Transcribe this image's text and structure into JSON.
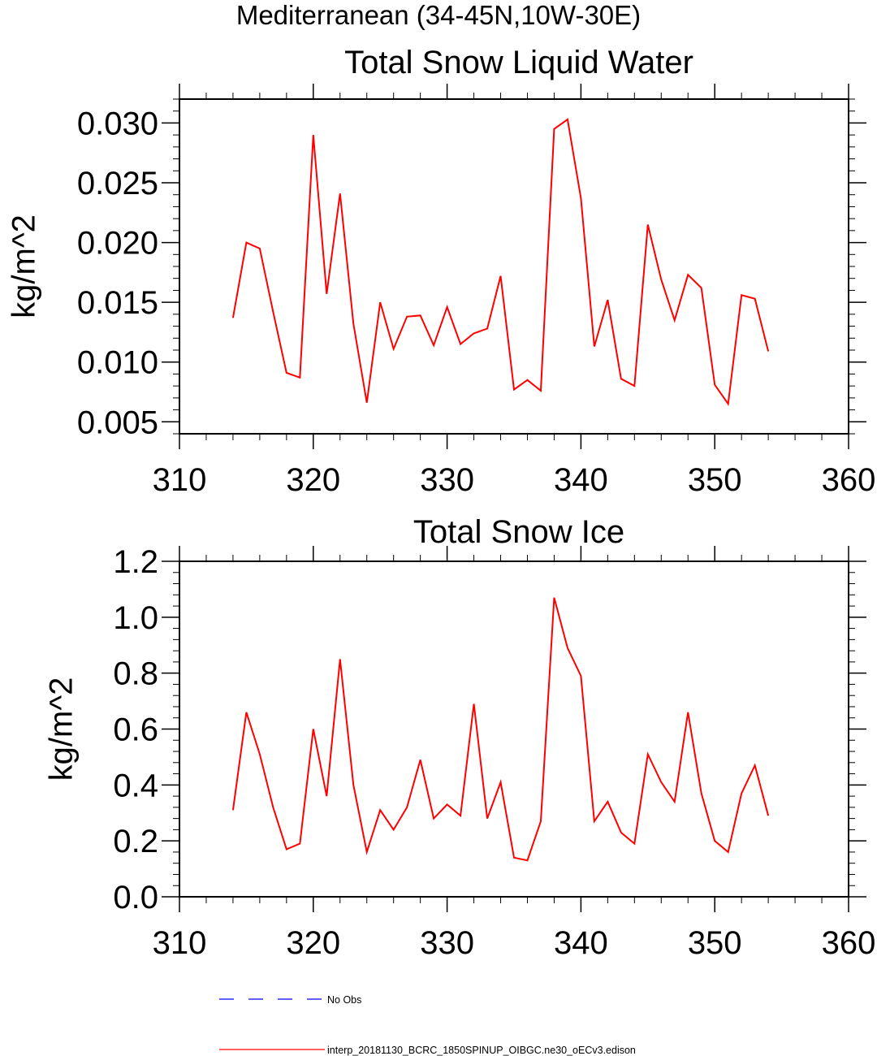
{
  "figure_title": "Mediterranean (34-45N,10W-30E)",
  "colors": {
    "series": "#ff0000",
    "obs": "#0000ff",
    "axis": "#000000"
  },
  "chart_data": [
    {
      "type": "line",
      "title": "Total Snow Liquid Water",
      "xlabel": "",
      "ylabel": "kg/m^2",
      "xlim": [
        310,
        360
      ],
      "ylim": [
        0.004,
        0.032
      ],
      "xticks": [
        310,
        320,
        330,
        340,
        350,
        360
      ],
      "xtick_labels": [
        "310",
        "320",
        "330",
        "340",
        "350",
        "360"
      ],
      "yticks": [
        0.005,
        0.01,
        0.015,
        0.02,
        0.025,
        0.03
      ],
      "ytick_labels": [
        "0.005",
        "0.010",
        "0.015",
        "0.020",
        "0.025",
        "0.030"
      ],
      "grid": false,
      "series": [
        {
          "name": "interp_20181130_BCRC_1850SPINUP_OIBGC.ne30_oECv3.edison",
          "color": "#ff0000",
          "x": [
            314,
            315,
            316,
            317,
            318,
            319,
            320,
            321,
            322,
            323,
            324,
            325,
            326,
            327,
            328,
            329,
            330,
            331,
            332,
            333,
            334,
            335,
            336,
            337,
            338,
            339,
            340,
            341,
            342,
            343,
            344,
            345,
            346,
            347,
            348,
            349,
            350,
            351,
            352,
            353,
            354
          ],
          "values": [
            0.0137,
            0.02,
            0.0195,
            0.0142,
            0.0091,
            0.0087,
            0.029,
            0.0157,
            0.0241,
            0.0132,
            0.0066,
            0.015,
            0.0111,
            0.0138,
            0.0139,
            0.0114,
            0.0146,
            0.0115,
            0.0124,
            0.0128,
            0.0172,
            0.0077,
            0.0085,
            0.0076,
            0.0295,
            0.0303,
            0.0237,
            0.0113,
            0.0152,
            0.0086,
            0.008,
            0.0215,
            0.0169,
            0.0135,
            0.0173,
            0.0162,
            0.0081,
            0.0065,
            0.0156,
            0.0153,
            0.0109
          ]
        }
      ]
    },
    {
      "type": "line",
      "title": "Total Snow Ice",
      "xlabel": "",
      "ylabel": "kg/m^2",
      "xlim": [
        310,
        360
      ],
      "ylim": [
        0.0,
        1.2
      ],
      "xticks": [
        310,
        320,
        330,
        340,
        350,
        360
      ],
      "xtick_labels": [
        "310",
        "320",
        "330",
        "340",
        "350",
        "360"
      ],
      "yticks": [
        0.0,
        0.2,
        0.4,
        0.6,
        0.8,
        1.0,
        1.2
      ],
      "ytick_labels": [
        "0.0",
        "0.2",
        "0.4",
        "0.6",
        "0.8",
        "1.0",
        "1.2"
      ],
      "grid": false,
      "series": [
        {
          "name": "interp_20181130_BCRC_1850SPINUP_OIBGC.ne30_oECv3.edison",
          "color": "#ff0000",
          "x": [
            314,
            315,
            316,
            317,
            318,
            319,
            320,
            321,
            322,
            323,
            324,
            325,
            326,
            327,
            328,
            329,
            330,
            331,
            332,
            333,
            334,
            335,
            336,
            337,
            338,
            339,
            340,
            341,
            342,
            343,
            344,
            345,
            346,
            347,
            348,
            349,
            350,
            351,
            352,
            353,
            354
          ],
          "values": [
            0.31,
            0.66,
            0.51,
            0.32,
            0.17,
            0.19,
            0.6,
            0.36,
            0.85,
            0.4,
            0.16,
            0.31,
            0.24,
            0.32,
            0.49,
            0.28,
            0.33,
            0.29,
            0.69,
            0.28,
            0.41,
            0.14,
            0.13,
            0.27,
            1.07,
            0.89,
            0.79,
            0.27,
            0.34,
            0.23,
            0.19,
            0.51,
            0.41,
            0.34,
            0.66,
            0.37,
            0.2,
            0.16,
            0.37,
            0.47,
            0.29
          ]
        }
      ]
    }
  ],
  "legend": [
    {
      "label": "No Obs",
      "color": "#0000ff",
      "style": "dashed"
    },
    {
      "label": "interp_20181130_BCRC_1850SPINUP_OIBGC.ne30_oECv3.edison",
      "color": "#ff0000",
      "style": "solid"
    }
  ]
}
